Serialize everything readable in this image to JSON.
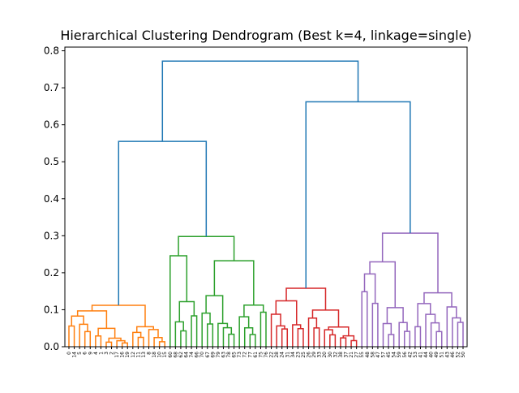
{
  "chart_data": {
    "type": "dendrogram",
    "title": "Hierarchical Clustering Dendrogram (Best k=4, linkage=single)",
    "xlabel": "",
    "ylabel": "",
    "ylim": [
      0,
      0.81
    ],
    "yticks": [
      0.0,
      0.1,
      0.2,
      0.3,
      0.4,
      0.5,
      0.6,
      0.7,
      0.8
    ],
    "ytick_labels": [
      "0.0",
      "0.1",
      "0.2",
      "0.3",
      "0.4",
      "0.5",
      "0.6",
      "0.7",
      "0.8"
    ],
    "grid": false,
    "leaf_labels": [
      "0",
      "14",
      "5",
      "6",
      "9",
      "4",
      "1",
      "3",
      "2",
      "17",
      "16",
      "19",
      "12",
      "11",
      "13",
      "8",
      "18",
      "10",
      "15",
      "60",
      "68",
      "62",
      "64",
      "74",
      "66",
      "70",
      "67",
      "69",
      "79",
      "63",
      "78",
      "65",
      "73",
      "72",
      "77",
      "61",
      "75",
      "76",
      "22",
      "28",
      "24",
      "31",
      "34",
      "23",
      "25",
      "26",
      "29",
      "33",
      "20",
      "30",
      "32",
      "38",
      "37",
      "21",
      "27",
      "55",
      "48",
      "58",
      "47",
      "57",
      "45",
      "54",
      "59",
      "56",
      "42",
      "53",
      "41",
      "44",
      "40",
      "49",
      "51",
      "43",
      "46",
      "52",
      "50"
    ],
    "cluster_colors": [
      "#ff7f0e",
      "#2ca02c",
      "#d62728",
      "#9467bd"
    ],
    "root_color": "#1f77b4",
    "clusters": [
      {
        "color": "#ff7f0e",
        "leaves": [
          0,
          18
        ],
        "top": 0.112
      },
      {
        "color": "#2ca02c",
        "leaves": [
          19,
          37
        ],
        "top": 0.298
      },
      {
        "color": "#d62728",
        "leaves": [
          38,
          54
        ],
        "top": 0.158
      },
      {
        "color": "#9467bd",
        "leaves": [
          55,
          74
        ],
        "top": 0.307
      }
    ],
    "root_links": [
      {
        "height": 0.555,
        "joins": [
          "orange",
          "green"
        ]
      },
      {
        "height": 0.662,
        "joins": [
          "red",
          "purple"
        ]
      },
      {
        "height": 0.772,
        "joins": [
          "orange+green",
          "red+purple"
        ]
      }
    ]
  }
}
